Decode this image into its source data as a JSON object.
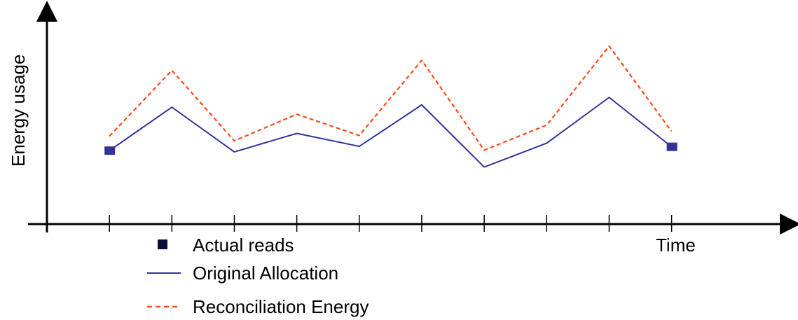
{
  "chart_data": {
    "type": "line",
    "title": "",
    "xlabel": "Time",
    "ylabel": "Energy usage",
    "x": [
      1,
      2,
      3,
      4,
      5,
      6,
      7,
      8,
      9,
      10
    ],
    "xlim": [
      0,
      11.9
    ],
    "ylim": [
      0,
      10
    ],
    "series": [
      {
        "name": "Original Allocation",
        "style": "solid",
        "color": "#33339c",
        "values": [
          3.45,
          5.49,
          3.39,
          4.26,
          3.65,
          5.6,
          2.68,
          3.8,
          5.95,
          3.63
        ]
      },
      {
        "name": "Reconciliation Energy",
        "style": "dashed",
        "color": "#ff4a1a",
        "values": [
          4.13,
          7.22,
          3.91,
          5.16,
          4.16,
          7.69,
          3.47,
          4.65,
          8.36,
          4.35
        ]
      }
    ],
    "actual_reads": {
      "name": "Actual reads",
      "color": "#333399",
      "points": [
        {
          "x": 1,
          "y": 3.45
        },
        {
          "x": 10,
          "y": 3.63
        }
      ]
    },
    "grid": false,
    "legend_position": "bottom-left"
  }
}
